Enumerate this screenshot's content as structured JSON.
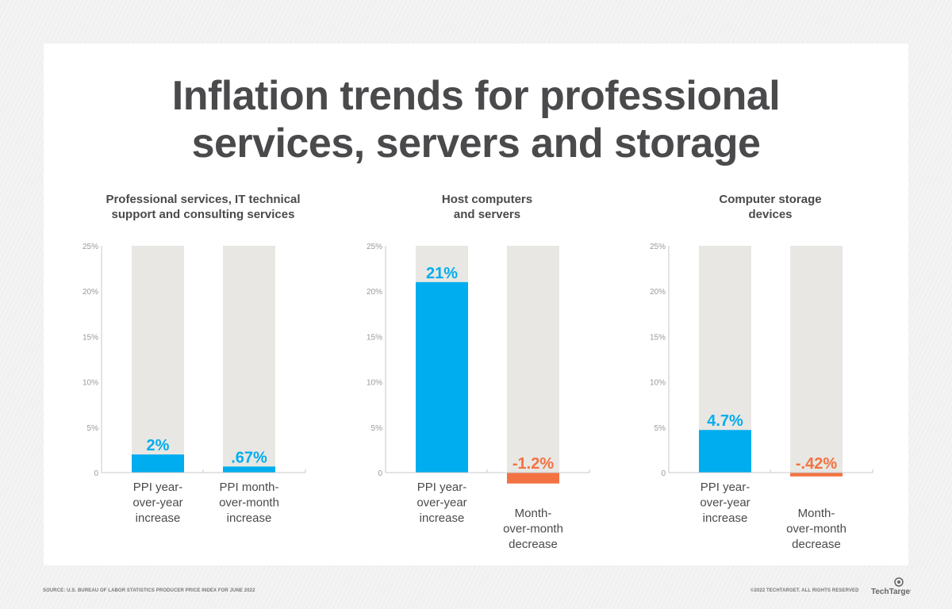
{
  "title_lines": [
    "Inflation trends for professional",
    "services, servers and storage"
  ],
  "source": "SOURCE: U.S. BUREAU OF LABOR STATISTICS PRODUCER PRICE INDEX FOR JUNE 2022",
  "copyright": "©2022 TECHTARGET. ALL RIGHTS RESERVED",
  "logo_text": "TechTarget",
  "colors": {
    "positive": "#00adef",
    "negative": "#f37242",
    "track": "#e8e7e3",
    "axis": "#c8c8c8",
    "text": "#4a4a4c"
  },
  "chart_data": [
    {
      "type": "bar",
      "title": [
        "Professional services, IT technical",
        "support and consulting services"
      ],
      "ylim": [
        0,
        25
      ],
      "yticks": [
        "0",
        "5%",
        "10%",
        "15%",
        "20%",
        "25%"
      ],
      "categories": [
        [
          "PPI year-",
          "over-year",
          "increase"
        ],
        [
          "PPI month-",
          "over-month",
          "increase"
        ]
      ],
      "values": [
        2,
        0.67
      ],
      "labels": [
        "2%",
        ".67%"
      ]
    },
    {
      "type": "bar",
      "title": [
        "Host computers",
        "and servers"
      ],
      "ylim": [
        0,
        25
      ],
      "yticks": [
        "0",
        "5%",
        "10%",
        "15%",
        "20%",
        "25%"
      ],
      "categories": [
        [
          "PPI year-",
          "over-year",
          "increase"
        ],
        [
          "Month-",
          "over-month",
          "decrease"
        ]
      ],
      "values": [
        21,
        -1.2
      ],
      "labels": [
        "21%",
        "-1.2%"
      ]
    },
    {
      "type": "bar",
      "title": [
        "Computer storage",
        "devices"
      ],
      "ylim": [
        0,
        25
      ],
      "yticks": [
        "0",
        "5%",
        "10%",
        "15%",
        "20%",
        "25%"
      ],
      "categories": [
        [
          "PPI year-",
          "over-year",
          "increase"
        ],
        [
          "Month-",
          "over-month",
          "decrease"
        ]
      ],
      "values": [
        4.7,
        -0.42
      ],
      "labels": [
        "4.7%",
        "-.42%"
      ]
    }
  ]
}
